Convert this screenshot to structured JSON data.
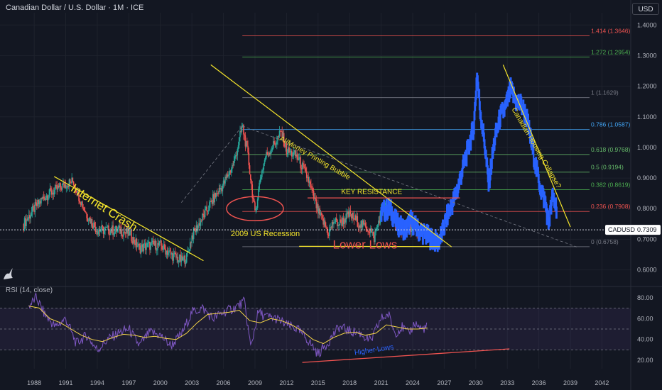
{
  "header": {
    "title": "Canadian Dollar / U.S. Dollar · 1M · ICE",
    "currency": "USD",
    "rsi_label": "RSI (14, close)"
  },
  "colors": {
    "background": "#131722",
    "up": "#26a69a",
    "down": "#ef5350",
    "projection": "#2962ff",
    "trendline": "#f5e52b",
    "rsi": "#7e57c2",
    "rsi_ma": "#f5d547"
  },
  "chart_data": [
    {
      "type": "candlestick",
      "symbol": "CADUSD",
      "last_price": "0.7309",
      "x_ticks": [
        "1988",
        "1991",
        "1994",
        "1997",
        "2000",
        "2003",
        "2006",
        "2009",
        "2012",
        "2015",
        "2018",
        "2021",
        "2024",
        "2027",
        "2030",
        "2033",
        "2036",
        "2039",
        "2042"
      ],
      "y_ticks": [
        "1.4000",
        "1.3000",
        "1.2000",
        "1.1000",
        "1.0000",
        "0.9000",
        "0.8000",
        "0.7000",
        "0.6000"
      ],
      "ylim": [
        0.555,
        1.44
      ],
      "xlim": [
        1986.1,
        2044.2
      ],
      "history": [
        [
          1987.0,
          0.75
        ],
        [
          1988.0,
          0.8
        ],
        [
          1989.0,
          0.84
        ],
        [
          1990.0,
          0.86
        ],
        [
          1991.0,
          0.88
        ],
        [
          1991.7,
          0.89
        ],
        [
          1992.5,
          0.82
        ],
        [
          1993.0,
          0.78
        ],
        [
          1994.0,
          0.73
        ],
        [
          1995.0,
          0.73
        ],
        [
          1996.0,
          0.73
        ],
        [
          1997.0,
          0.72
        ],
        [
          1998.0,
          0.67
        ],
        [
          1999.0,
          0.68
        ],
        [
          2000.0,
          0.68
        ],
        [
          2001.0,
          0.65
        ],
        [
          2002.0,
          0.63
        ],
        [
          2002.5,
          0.64
        ],
        [
          2003.0,
          0.71
        ],
        [
          2004.0,
          0.77
        ],
        [
          2005.0,
          0.83
        ],
        [
          2006.0,
          0.88
        ],
        [
          2007.0,
          0.95
        ],
        [
          2007.8,
          1.07
        ],
        [
          2008.3,
          0.98
        ],
        [
          2009.0,
          0.78
        ],
        [
          2009.5,
          0.9
        ],
        [
          2010.0,
          0.97
        ],
        [
          2011.0,
          1.02
        ],
        [
          2011.5,
          1.05
        ],
        [
          2012.0,
          0.99
        ],
        [
          2013.0,
          0.97
        ],
        [
          2014.0,
          0.9
        ],
        [
          2015.0,
          0.79
        ],
        [
          2016.0,
          0.72
        ],
        [
          2016.5,
          0.76
        ],
        [
          2017.0,
          0.75
        ],
        [
          2018.0,
          0.78
        ],
        [
          2019.0,
          0.75
        ],
        [
          2020.0,
          0.73
        ],
        [
          2020.3,
          0.7
        ],
        [
          2021.0,
          0.79
        ],
        [
          2021.5,
          0.81
        ],
        [
          2022.0,
          0.78
        ],
        [
          2022.8,
          0.73
        ],
        [
          2023.5,
          0.75
        ],
        [
          2024.2,
          0.73
        ],
        [
          2025.0,
          0.7309
        ]
      ],
      "projection": [
        [
          2021.0,
          0.79
        ],
        [
          2021.8,
          0.8
        ],
        [
          2022.5,
          0.75
        ],
        [
          2023.3,
          0.73
        ],
        [
          2023.8,
          0.76
        ],
        [
          2024.5,
          0.73
        ],
        [
          2025.0,
          0.72
        ],
        [
          2025.8,
          0.7
        ],
        [
          2026.4,
          0.69
        ],
        [
          2026.8,
          0.72
        ],
        [
          2027.3,
          0.78
        ],
        [
          2027.8,
          0.82
        ],
        [
          2028.3,
          0.87
        ],
        [
          2028.8,
          0.94
        ],
        [
          2029.3,
          1.0
        ],
        [
          2029.8,
          1.07
        ],
        [
          2030.1,
          1.24
        ],
        [
          2030.4,
          1.12
        ],
        [
          2030.8,
          1.02
        ],
        [
          2031.2,
          0.88
        ],
        [
          2031.8,
          1.03
        ],
        [
          2032.3,
          1.1
        ],
        [
          2032.8,
          1.13
        ],
        [
          2033.3,
          1.19
        ],
        [
          2033.8,
          1.15
        ],
        [
          2034.3,
          1.14
        ],
        [
          2034.8,
          1.1
        ],
        [
          2035.3,
          1.01
        ],
        [
          2035.8,
          0.92
        ],
        [
          2036.2,
          0.86
        ],
        [
          2036.6,
          0.82
        ],
        [
          2036.9,
          0.75
        ],
        [
          2037.3,
          0.84
        ],
        [
          2037.7,
          0.8
        ]
      ],
      "fib_levels": [
        {
          "label": "1.414 (1.3646)",
          "value": 1.3646,
          "color": "#ef5350"
        },
        {
          "label": "1.272 (1.2954)",
          "value": 1.2954,
          "color": "#4caf50"
        },
        {
          "label": "1 (1.1629)",
          "value": 1.1629,
          "color": "#787b86"
        },
        {
          "label": "0.786 (1.0587)",
          "value": 1.0587,
          "color": "#42a5f5"
        },
        {
          "label": "0.618 (0.9768)",
          "value": 0.9768,
          "color": "#66bb6a"
        },
        {
          "label": "0.5 (0.9194)",
          "value": 0.9194,
          "color": "#66bb6a"
        },
        {
          "label": "0.382 (0.8619)",
          "value": 0.8619,
          "color": "#4caf50"
        },
        {
          "label": "0.236 (0.7908)",
          "value": 0.7908,
          "color": "#ef5350"
        },
        {
          "label": "0 (0.6758)",
          "value": 0.6758,
          "color": "#787b86"
        }
      ],
      "annotations": [
        {
          "text": "Internet Crash",
          "x": 1991.4,
          "y": 0.86,
          "rotate": 33,
          "size": 17,
          "color": "#f5e52b"
        },
        {
          "text": "AI/Money Printing Bubble",
          "x": 2011.3,
          "y": 1.025,
          "rotate": 30,
          "size": 10,
          "color": "#f5e52b"
        },
        {
          "text": "KEY RESISTANCE",
          "x": 2017.2,
          "y": 0.848,
          "rotate": 0,
          "size": 10,
          "color": "#f5e52b"
        },
        {
          "text": "2009 US Recession",
          "x": 2006.7,
          "y": 0.71,
          "rotate": 0,
          "size": 11,
          "color": "#f5e52b"
        },
        {
          "text": "Lower Lows",
          "x": 2016.4,
          "y": 0.67,
          "rotate": 0,
          "size": 17,
          "color": "#ef5350"
        },
        {
          "text": "Canadian Housing Collapse?",
          "x": 2033.4,
          "y": 1.125,
          "rotate": 60,
          "size": 10,
          "color": "#f5e52b"
        }
      ]
    },
    {
      "type": "line",
      "name": "RSI (14, close)",
      "y_ticks": [
        "80.00",
        "60.00",
        "40.00",
        "20.00"
      ],
      "ylim": [
        12,
        88
      ],
      "bands": [
        70,
        50,
        30
      ],
      "rsi": [
        [
          1987.5,
          72
        ],
        [
          1988.2,
          80
        ],
        [
          1989.0,
          64
        ],
        [
          1990.0,
          52
        ],
        [
          1991.0,
          60
        ],
        [
          1992.0,
          36
        ],
        [
          1993.0,
          44
        ],
        [
          1994.0,
          30
        ],
        [
          1995.0,
          40
        ],
        [
          1996.0,
          46
        ],
        [
          1997.0,
          50
        ],
        [
          1998.0,
          34
        ],
        [
          1999.0,
          47
        ],
        [
          2000.0,
          44
        ],
        [
          2001.0,
          34
        ],
        [
          2002.0,
          45
        ],
        [
          2003.0,
          66
        ],
        [
          2004.0,
          70
        ],
        [
          2005.0,
          60
        ],
        [
          2006.0,
          66
        ],
        [
          2007.0,
          70
        ],
        [
          2008.0,
          76
        ],
        [
          2008.6,
          32
        ],
        [
          2009.3,
          66
        ],
        [
          2010.0,
          62
        ],
        [
          2011.0,
          60
        ],
        [
          2012.0,
          54
        ],
        [
          2013.0,
          50
        ],
        [
          2014.0,
          40
        ],
        [
          2015.0,
          26
        ],
        [
          2016.0,
          38
        ],
        [
          2017.0,
          52
        ],
        [
          2018.0,
          48
        ],
        [
          2019.0,
          46
        ],
        [
          2020.0,
          38
        ],
        [
          2021.0,
          60
        ],
        [
          2021.7,
          64
        ],
        [
          2022.3,
          46
        ],
        [
          2023.0,
          52
        ],
        [
          2023.6,
          45
        ],
        [
          2024.2,
          56
        ],
        [
          2024.8,
          50
        ],
        [
          2025.4,
          52
        ]
      ],
      "rsi_ma": [
        [
          1987.5,
          72
        ],
        [
          1988.5,
          70
        ],
        [
          1989.5,
          60
        ],
        [
          1990.5,
          56
        ],
        [
          1991.5,
          50
        ],
        [
          1992.5,
          44
        ],
        [
          1993.5,
          40
        ],
        [
          1994.5,
          38
        ],
        [
          1995.5,
          42
        ],
        [
          1996.5,
          45
        ],
        [
          1997.5,
          44
        ],
        [
          1998.5,
          42
        ],
        [
          1999.5,
          43
        ],
        [
          2000.5,
          41
        ],
        [
          2001.5,
          40
        ],
        [
          2002.5,
          46
        ],
        [
          2003.5,
          56
        ],
        [
          2004.5,
          64
        ],
        [
          2005.5,
          65
        ],
        [
          2006.5,
          66
        ],
        [
          2007.5,
          68
        ],
        [
          2008.5,
          58
        ],
        [
          2009.5,
          56
        ],
        [
          2010.5,
          60
        ],
        [
          2011.5,
          58
        ],
        [
          2012.5,
          54
        ],
        [
          2013.5,
          48
        ],
        [
          2014.5,
          40
        ],
        [
          2015.5,
          36
        ],
        [
          2016.5,
          42
        ],
        [
          2017.5,
          46
        ],
        [
          2018.5,
          47
        ],
        [
          2019.5,
          44
        ],
        [
          2020.5,
          46
        ],
        [
          2021.5,
          54
        ],
        [
          2022.5,
          52
        ],
        [
          2023.5,
          50
        ],
        [
          2024.5,
          50
        ],
        [
          2025.4,
          51
        ]
      ],
      "annotations": [
        {
          "text": "Higher Lows",
          "x": 2018.5,
          "y": 25,
          "rotate": -9,
          "size": 10,
          "color": "#2962ff"
        }
      ]
    }
  ]
}
